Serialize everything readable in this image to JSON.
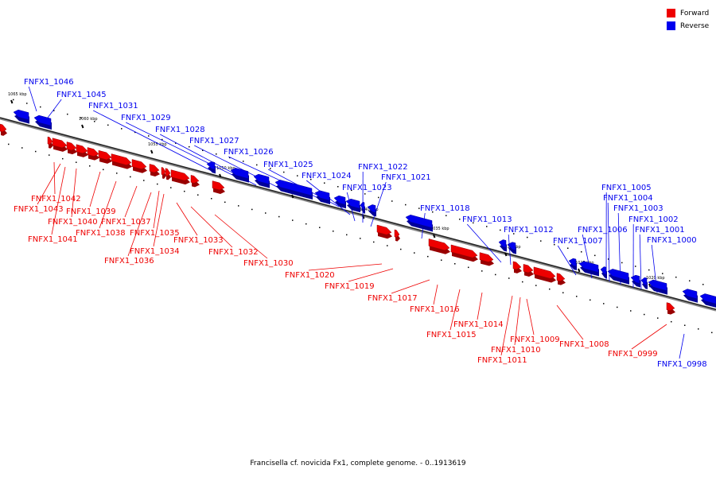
{
  "legend": {
    "forward_label": "Forward",
    "reverse_label": "Reverse",
    "forward_color": "#ee0000",
    "reverse_color": "#0000ee"
  },
  "caption": "Francisella cf. novicida Fx1, complete genome. - 0..1913619",
  "scale_labels": [
    "1065 kbp",
    "1060 kbp",
    "1055 kbp",
    "1050 kbp",
    "1045 kbp",
    "1040 kbp",
    "1035 kbp",
    "1030 kbp",
    "1025 kbp",
    "1020 kbp"
  ],
  "genes_reverse": [
    "FNFX1_1046",
    "FNFX1_1045",
    "FNFX1_1031",
    "FNFX1_1029",
    "FNFX1_1028",
    "FNFX1_1027",
    "FNFX1_1026",
    "FNFX1_1025",
    "FNFX1_1024",
    "FNFX1_1022",
    "FNFX1_1021",
    "FNFX1_1023",
    "FNFX1_1018",
    "FNFX1_1013",
    "FNFX1_1012",
    "FNFX1_1005",
    "FNFX1_1004",
    "FNFX1_1003",
    "FNFX1_1006",
    "FNFX1_1002",
    "FNFX1_1007",
    "FNFX1_1001",
    "FNFX1_1000",
    "FNFX1_0998"
  ],
  "genes_forward": [
    "FNFX1_1042",
    "FNFX1_1043",
    "FNFX1_1039",
    "FNFX1_1040",
    "FNFX1_1038",
    "FNFX1_1041",
    "FNFX1_1037",
    "FNFX1_1035",
    "FNFX1_1034",
    "FNFX1_1036",
    "FNFX1_1033",
    "FNFX1_1032",
    "FNFX1_1030",
    "FNFX1_1020",
    "FNFX1_1019",
    "FNFX1_1017",
    "FNFX1_1016",
    "FNFX1_1015",
    "FNFX1_1014",
    "FNFX1_1009",
    "FNFX1_1010",
    "FNFX1_1011",
    "FNFX1_1008",
    "FNFX1_0999"
  ]
}
